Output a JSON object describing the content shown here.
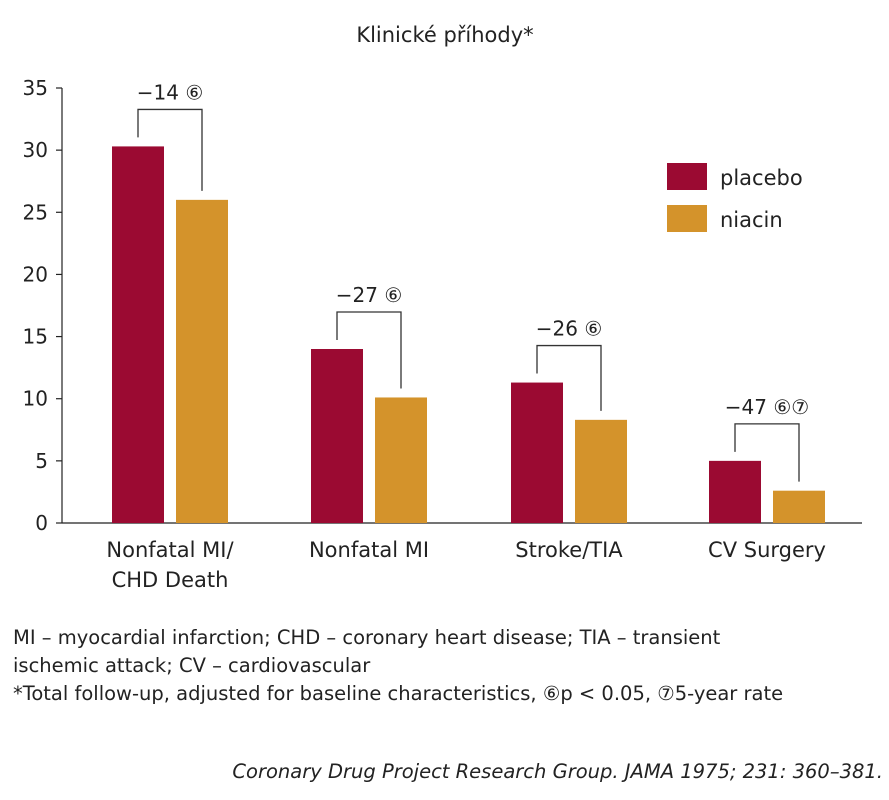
{
  "chart_data": {
    "type": "bar",
    "title": "Klinické příhody*",
    "categories": [
      [
        "Nonfatal MI/",
        "CHD Death"
      ],
      [
        "Nonfatal MI"
      ],
      [
        "Stroke/TIA"
      ],
      [
        "CV Surgery"
      ]
    ],
    "series": [
      {
        "name": "placebo",
        "color": "#9b0a32",
        "values": [
          30.3,
          14.0,
          11.3,
          5.0
        ]
      },
      {
        "name": "niacin",
        "color": "#d4932b",
        "values": [
          26.0,
          10.1,
          8.3,
          2.6
        ]
      }
    ],
    "annotations": [
      "−14 ⑥",
      "−27 ⑥",
      "−26 ⑥",
      "−47 ⑥⑦"
    ],
    "yticks": [
      "0",
      "5",
      "10",
      "15",
      "20",
      "25",
      "30",
      "35"
    ],
    "ylim": [
      0,
      35
    ],
    "grid": false,
    "legend_position": "top-right"
  },
  "footnote": {
    "lines": [
      "MI – myocardial infarction; CHD – coronary heart disease; TIA – transient",
      "ischemic attack; CV – cardiovascular",
      "*Total follow-up, adjusted for baseline characteristics, ⑥p < 0.05, ⑦5-year rate"
    ]
  },
  "source": "Coronary Drug Project Research Group. JAMA  1975; 231: 360–381."
}
